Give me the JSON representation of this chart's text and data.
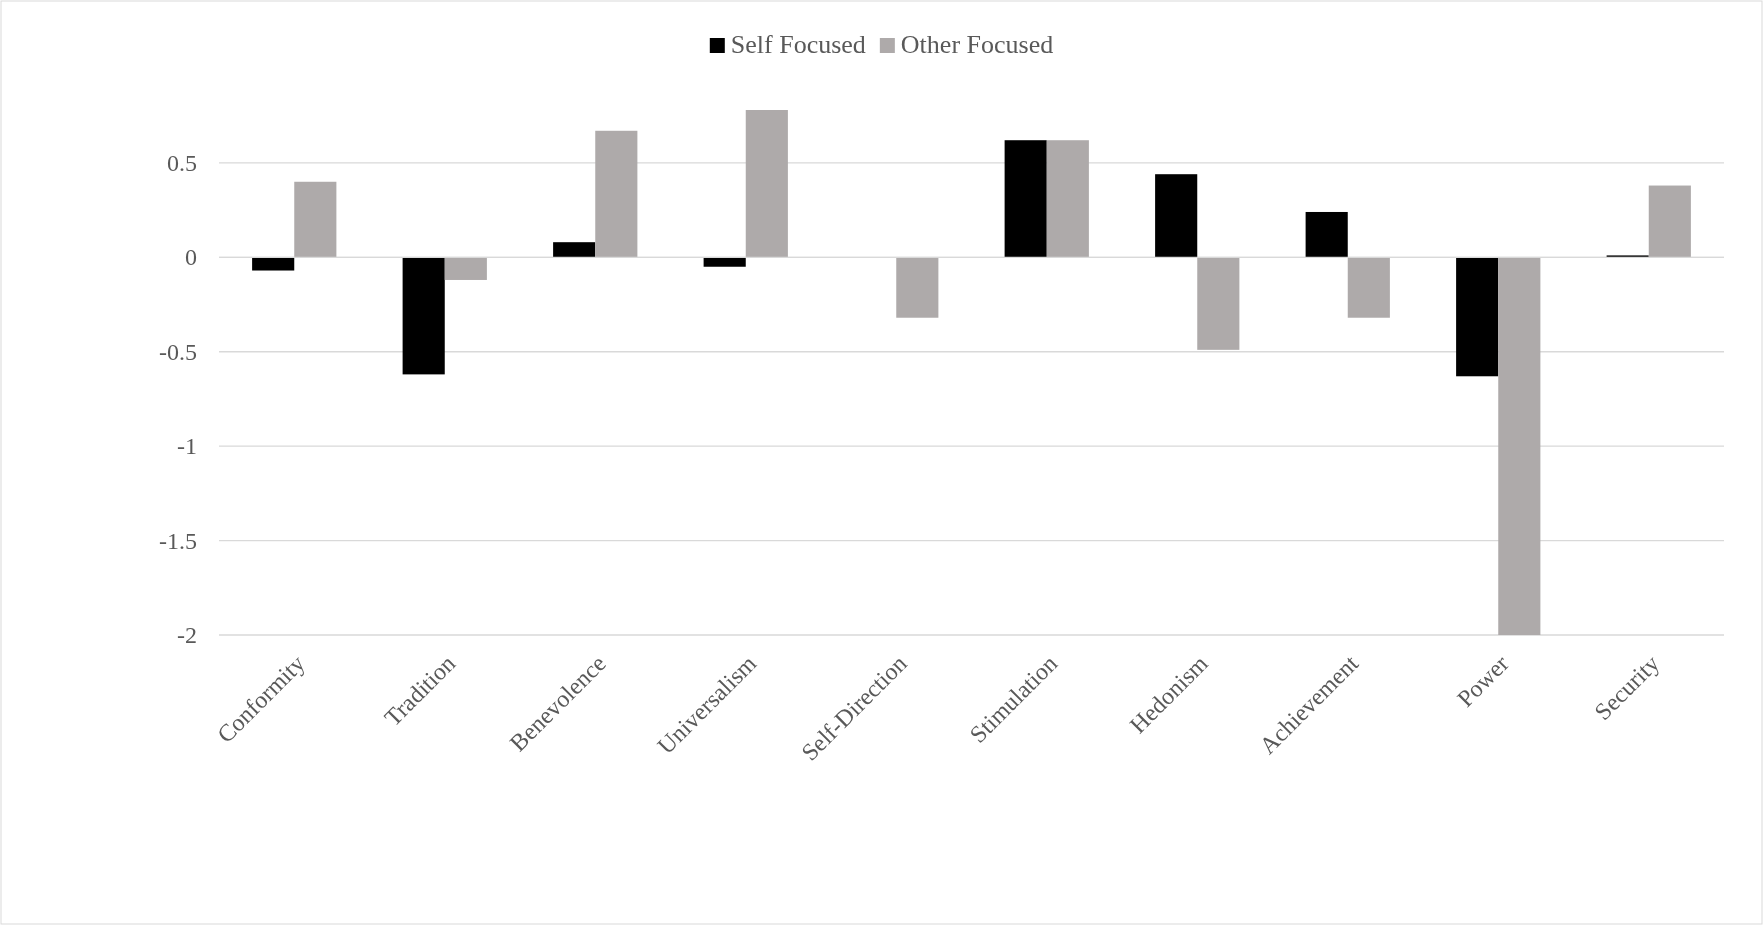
{
  "chart_data": {
    "type": "bar",
    "categories": [
      "Conformity",
      "Tradition",
      "Benevolence",
      "Universalism",
      "Self-Direction",
      "Stimulation",
      "Hedonism",
      "Achievement",
      "Power",
      "Security"
    ],
    "series": [
      {
        "name": "Self Focused",
        "color": "#000000",
        "values": [
          -0.07,
          -0.62,
          0.08,
          -0.05,
          0,
          0.62,
          0.44,
          0.24,
          -0.63,
          0.01
        ]
      },
      {
        "name": "Other Focused",
        "color": "#aeaaaa",
        "values": [
          0.4,
          -0.12,
          0.67,
          0.78,
          -0.32,
          0.62,
          -0.49,
          -0.32,
          -2,
          0.38
        ]
      }
    ],
    "ylim": [
      -2,
      0.78
    ],
    "yticks": [
      {
        "value": 0.5,
        "label": "0.5"
      },
      0,
      {
        "value": -0.5,
        "label": "-0.5"
      },
      -1,
      {
        "value": -1.5,
        "label": "-1.5"
      },
      -2
    ],
    "grid": "y",
    "legend": "top"
  }
}
